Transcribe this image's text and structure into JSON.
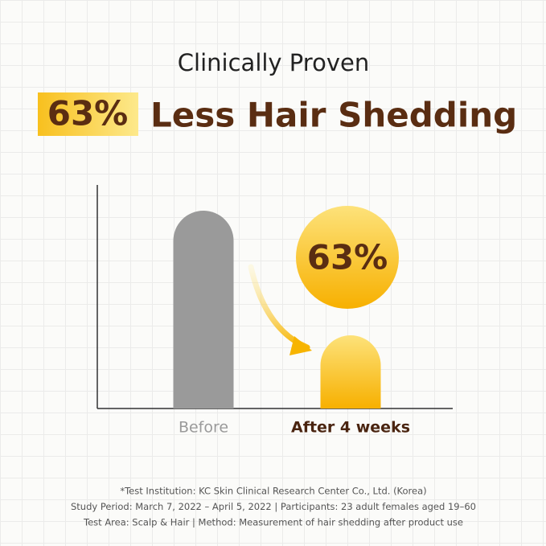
{
  "chart_data": {
    "type": "bar",
    "title": "Clinically Proven",
    "headline_highlight": "63%",
    "headline": "Less Hair Shedding",
    "categories": [
      "Before",
      "After 4 weeks"
    ],
    "values": [
      100,
      37
    ],
    "colors": [
      "#9a9a9a",
      "#f9c01c"
    ],
    "ylim": [
      0,
      113
    ],
    "annotation": "63%",
    "footnotes": [
      "*Test Institution: KC Skin Clinical Research Center Co., Ltd. (Korea)",
      "Study Period: March 7, 2022 – April 5, 2022  |   Participants: 23 adult females aged 19–60",
      "Test Area: Scalp & Hair  |   Method: Measurement of hair shedding after product use"
    ]
  }
}
